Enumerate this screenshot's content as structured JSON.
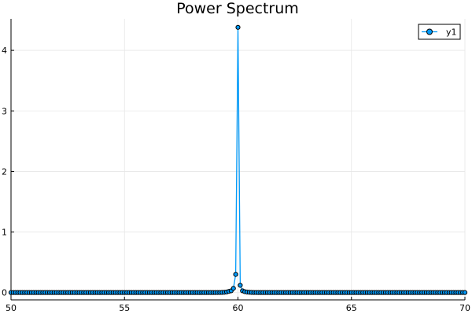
{
  "chart_data": {
    "type": "line",
    "title": "Power Spectrum",
    "xlabel": "",
    "ylabel": "",
    "xlim": [
      50,
      70
    ],
    "ylim": [
      -0.12,
      4.52
    ],
    "xticks": [
      50,
      55,
      60,
      65,
      70
    ],
    "xtick_labels": [
      "50",
      "55",
      "60",
      "65",
      "70"
    ],
    "yticks": [
      0,
      1,
      2,
      3,
      4
    ],
    "ytick_labels": [
      "0",
      "1",
      "2",
      "3",
      "4"
    ],
    "grid": true,
    "legend": {
      "position": "top-right",
      "entries": [
        "y1"
      ]
    },
    "colors": {
      "line": "#009AF9",
      "marker_edge": "#000000"
    },
    "series": [
      {
        "name": "y1",
        "marker": "circle",
        "x_start": 50.0,
        "x_step": 0.1,
        "values": [
          0.001,
          0.001,
          0.001,
          0.001,
          0.001,
          0.001,
          0.001,
          0.001,
          0.001,
          0.001,
          0.001,
          0.001,
          0.001,
          0.001,
          0.001,
          0.001,
          0.001,
          0.001,
          0.001,
          0.001,
          0.001,
          0.001,
          0.001,
          0.001,
          0.001,
          0.001,
          0.001,
          0.001,
          0.001,
          0.001,
          0.001,
          0.001,
          0.001,
          0.001,
          0.001,
          0.001,
          0.001,
          0.001,
          0.001,
          0.001,
          0.001,
          0.001,
          0.001,
          0.001,
          0.001,
          0.001,
          0.001,
          0.001,
          0.001,
          0.001,
          0.001,
          0.001,
          0.001,
          0.001,
          0.001,
          0.001,
          0.001,
          0.001,
          0.001,
          0.001,
          0.001,
          0.001,
          0.001,
          0.001,
          0.001,
          0.001,
          0.001,
          0.001,
          0.001,
          0.001,
          0.001,
          0.001,
          0.001,
          0.001,
          0.001,
          0.001,
          0.001,
          0.001,
          0.001,
          0.001,
          0.001,
          0.001,
          0.001,
          0.001,
          0.001,
          0.001,
          0.001,
          0.001,
          0.001,
          0.001,
          0.001,
          0.002,
          0.002,
          0.003,
          0.005,
          0.01,
          0.02,
          0.03,
          0.07,
          0.3,
          4.38,
          0.12,
          0.03,
          0.015,
          0.008,
          0.005,
          0.003,
          0.002,
          0.002,
          0.001,
          0.001,
          0.001,
          0.001,
          0.001,
          0.001,
          0.001,
          0.001,
          0.001,
          0.001,
          0.001,
          0.001,
          0.001,
          0.001,
          0.001,
          0.001,
          0.001,
          0.001,
          0.001,
          0.001,
          0.001,
          0.001,
          0.001,
          0.001,
          0.001,
          0.001,
          0.001,
          0.001,
          0.001,
          0.001,
          0.001,
          0.001,
          0.001,
          0.001,
          0.001,
          0.001,
          0.001,
          0.001,
          0.001,
          0.001,
          0.001,
          0.001,
          0.001,
          0.001,
          0.001,
          0.001,
          0.001,
          0.001,
          0.001,
          0.001,
          0.001,
          0.001,
          0.001,
          0.001,
          0.001,
          0.001,
          0.001,
          0.001,
          0.001,
          0.001,
          0.001,
          0.001,
          0.001,
          0.001,
          0.001,
          0.001,
          0.001,
          0.001,
          0.001,
          0.001,
          0.001,
          0.001,
          0.001,
          0.001,
          0.001,
          0.001,
          0.001,
          0.001,
          0.001,
          0.001,
          0.001,
          0.001,
          0.001,
          0.001,
          0.001,
          0.001,
          0.001,
          0.001,
          0.001,
          0.001,
          0.001,
          0.001
        ]
      }
    ]
  }
}
